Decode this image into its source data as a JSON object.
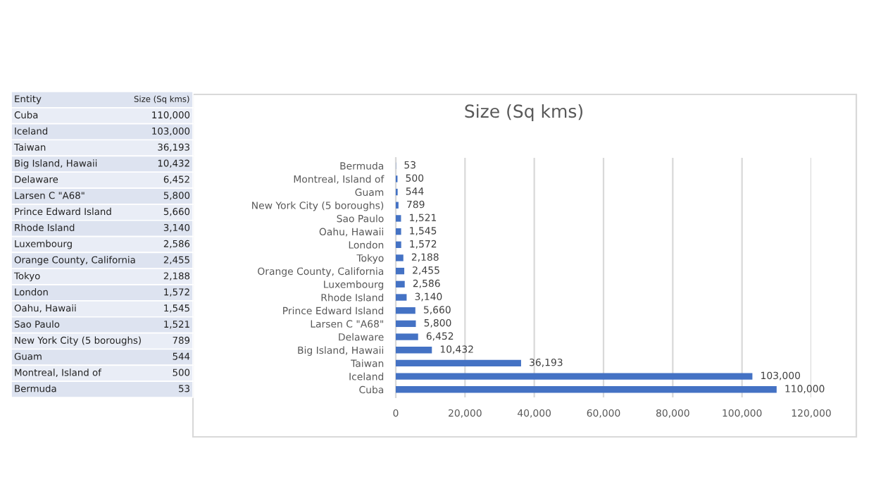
{
  "chart_data": {
    "type": "bar",
    "orientation": "horizontal",
    "title": "Size (Sq kms)",
    "categories": [
      "Bermuda",
      "Montreal, Island of",
      "Guam",
      "New York City (5 boroughs)",
      "Sao Paulo",
      "Oahu, Hawaii",
      "London",
      "Tokyo",
      "Orange County, California",
      "Luxembourg",
      "Rhode Island",
      "Prince Edward Island",
      "Larsen C \"A68\"",
      "Delaware",
      "Big Island, Hawaii",
      "Taiwan",
      "Iceland",
      "Cuba"
    ],
    "values": [
      53,
      500,
      544,
      789,
      1521,
      1545,
      1572,
      2188,
      2455,
      2586,
      3140,
      5660,
      5800,
      6452,
      10432,
      36193,
      103000,
      110000
    ],
    "color": "#4472c4",
    "xlim": [
      0,
      120000
    ],
    "xticks": [
      0,
      {
        "value": 20000,
        "label": "20,000"
      },
      {
        "value": 40000,
        "label": "40,000"
      },
      {
        "value": 60000,
        "label": "60,000"
      },
      {
        "value": 80000,
        "label": "80,000"
      },
      {
        "value": 100000,
        "label": "100,000"
      },
      {
        "value": 120000,
        "label": "120,000"
      }
    ],
    "grid": "x",
    "value_labels": [
      "53",
      "500",
      "544",
      "789",
      "1,521",
      "1,545",
      "1,572",
      "2,188",
      "2,455",
      "2,586",
      "3,140",
      "5,660",
      "5,800",
      "6,452",
      "10,432",
      "36,193",
      "103,000",
      "110,000"
    ],
    "annotations": [
      "Entity",
      "Size (Sq kms)"
    ]
  }
}
